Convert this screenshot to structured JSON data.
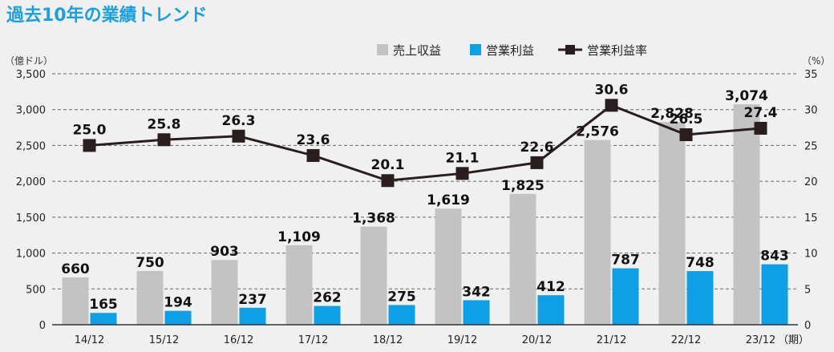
{
  "title": "過去10年の業績トレンド",
  "colors": {
    "title": "#1aa0df",
    "revenue": "#c3c3c3",
    "operating_income": "#0ea0e6",
    "margin": "#2a1d1d",
    "grid": "#666666",
    "background": "#f0f0f0"
  },
  "legend": {
    "revenue": "売上収益",
    "operating_income": "営業利益",
    "margin": "営業利益率"
  },
  "left_unit": "（億ドル）",
  "right_unit": "（%）",
  "x_suffix": "（期）",
  "chart_data": {
    "type": "bar",
    "title": "過去10年の業績トレンド",
    "categories": [
      "14/12",
      "15/12",
      "16/12",
      "17/12",
      "18/12",
      "19/12",
      "20/12",
      "21/12",
      "22/12",
      "23/12"
    ],
    "series": [
      {
        "name": "売上収益",
        "type": "bar",
        "axis": "left",
        "values": [
          660,
          750,
          903,
          1109,
          1368,
          1619,
          1825,
          2576,
          2828,
          3074
        ],
        "labels": [
          "660",
          "750",
          "903",
          "1,109",
          "1,368",
          "1,619",
          "1,825",
          "2,576",
          "2,828",
          "3,074"
        ]
      },
      {
        "name": "営業利益",
        "type": "bar",
        "axis": "left",
        "values": [
          165,
          194,
          237,
          262,
          275,
          342,
          412,
          787,
          748,
          843
        ],
        "labels": [
          "165",
          "194",
          "237",
          "262",
          "275",
          "342",
          "412",
          "787",
          "748",
          "843"
        ]
      },
      {
        "name": "営業利益率",
        "type": "line",
        "axis": "right",
        "values": [
          25.0,
          25.8,
          26.3,
          23.6,
          20.1,
          21.1,
          22.6,
          30.6,
          26.5,
          27.4
        ],
        "labels": [
          "25.0",
          "25.8",
          "26.3",
          "23.6",
          "20.1",
          "21.1",
          "22.6",
          "30.6",
          "26.5",
          "27.4"
        ]
      }
    ],
    "y_left": {
      "lim": [
        0,
        3500
      ],
      "ticks": [
        0,
        500,
        1000,
        1500,
        2000,
        2500,
        3000,
        3500
      ],
      "tick_labels": [
        "0",
        "500",
        "1,000",
        "1,500",
        "2,000",
        "2,500",
        "3,000",
        "3,500"
      ]
    },
    "y_right": {
      "lim": [
        0,
        35
      ],
      "ticks": [
        0,
        5,
        10,
        15,
        20,
        25,
        30,
        35
      ],
      "tick_labels": [
        "0",
        "5",
        "10",
        "15",
        "20",
        "25",
        "30",
        "35"
      ]
    },
    "grid": "horizontal dashed",
    "legend_position": "top-right"
  }
}
